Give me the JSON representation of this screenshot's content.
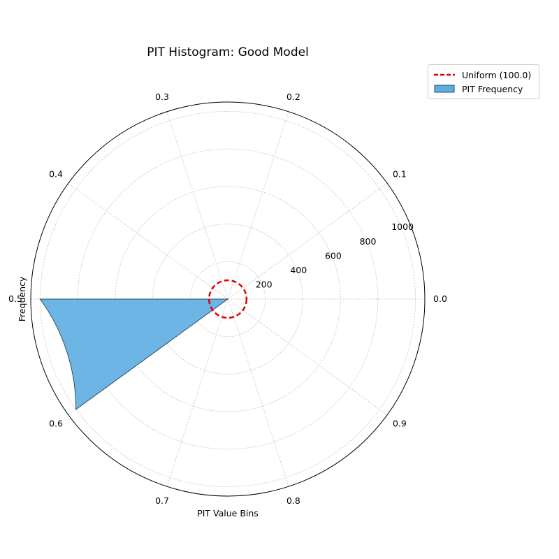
{
  "chart_data": {
    "type": "polar-bar",
    "title": "PIT Histogram: Good Model",
    "xlabel": "PIT Value Bins",
    "ylabel": "Frequency",
    "angle_tick_labels": [
      "0.0",
      "0.1",
      "0.2",
      "0.3",
      "0.4",
      "0.5",
      "0.6",
      "0.7",
      "0.8",
      "0.9"
    ],
    "radial_tick_labels": [
      "200",
      "400",
      "600",
      "800",
      "1000"
    ],
    "rlim": [
      0,
      1050
    ],
    "bins": [
      "0.0",
      "0.1",
      "0.2",
      "0.3",
      "0.4",
      "0.5",
      "0.6",
      "0.7",
      "0.8",
      "0.9"
    ],
    "values": [
      0,
      0,
      0,
      0,
      0,
      1000,
      0,
      0,
      0,
      0
    ],
    "series_name": "PIT Frequency",
    "reference_line": {
      "name": "Uniform (100.0)",
      "value": 100.0
    },
    "legend": [
      "Uniform (100.0)",
      "PIT Frequency"
    ],
    "legend_position": "upper-right outside",
    "grid": true,
    "colors": {
      "bar_fill": "#5dade2",
      "bar_edge": "#34495e",
      "reference": "#e00000",
      "grid": "#cccccc"
    }
  }
}
